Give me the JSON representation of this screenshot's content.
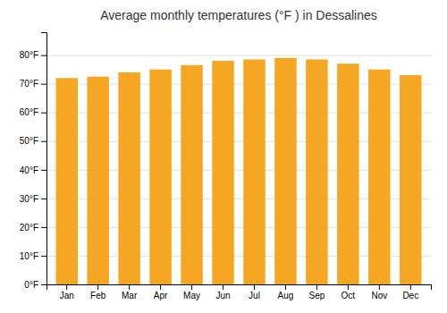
{
  "chart_data": {
    "type": "bar",
    "title": "Average monthly temperatures (°F ) in Dessalines",
    "categories": [
      "Jan",
      "Feb",
      "Mar",
      "Apr",
      "May",
      "Jun",
      "Jul",
      "Aug",
      "Sep",
      "Oct",
      "Nov",
      "Dec"
    ],
    "values": [
      72,
      72.5,
      74,
      75,
      76.5,
      78,
      78.5,
      79,
      78.5,
      77,
      75,
      73
    ],
    "color": "#F5A623",
    "ylim": [
      0,
      88
    ],
    "yticks": [
      {
        "value": 0,
        "label": "0°F"
      },
      {
        "value": 10,
        "label": "10°F"
      },
      {
        "value": 20,
        "label": "20°F"
      },
      {
        "value": 30,
        "label": "30°F"
      },
      {
        "value": 40,
        "label": "40°F"
      },
      {
        "value": 50,
        "label": "50°F"
      },
      {
        "value": 60,
        "label": "60°F"
      },
      {
        "value": 70,
        "label": "70°F"
      },
      {
        "value": 80,
        "label": "80°F"
      }
    ],
    "grid": true
  }
}
